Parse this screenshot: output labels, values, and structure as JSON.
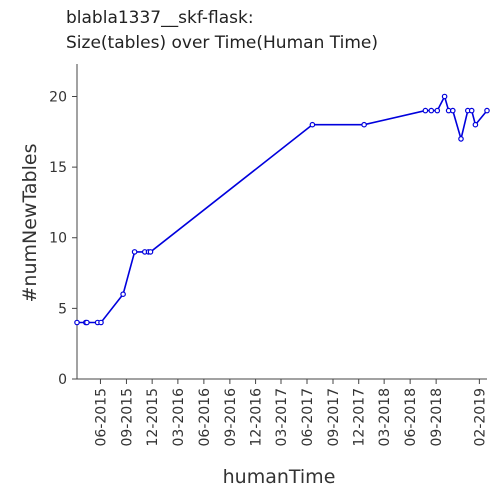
{
  "chart_data": {
    "type": "line",
    "title_lines": [
      "blabla1337__skf-flask:",
      "Size(tables) over Time(Human Time)"
    ],
    "xlabel": "humanTime",
    "ylabel": "#numNewTables",
    "x_ticks": [
      "06-2015",
      "09-2015",
      "12-2015",
      "03-2016",
      "06-2016",
      "09-2016",
      "12-2016",
      "03-2017",
      "06-2017",
      "09-2017",
      "12-2017",
      "03-2018",
      "06-2018",
      "09-2018",
      "02-2019"
    ],
    "y_ticks": [
      "0",
      "5",
      "10",
      "15",
      "20"
    ],
    "ylim": [
      0,
      22.3
    ],
    "xlim": [
      "2015-03-10",
      "2019-02-28"
    ],
    "grid": false,
    "color": "#0000dd",
    "series": [
      {
        "points": [
          {
            "x": "2015-03-10",
            "y": 4
          },
          {
            "x": "2015-04-10",
            "y": 4
          },
          {
            "x": "2015-04-14",
            "y": 4
          },
          {
            "x": "2015-05-22",
            "y": 4
          },
          {
            "x": "2015-06-03",
            "y": 4
          },
          {
            "x": "2015-08-20",
            "y": 6
          },
          {
            "x": "2015-09-30",
            "y": 9
          },
          {
            "x": "2015-11-05",
            "y": 9
          },
          {
            "x": "2015-11-18",
            "y": 9
          },
          {
            "x": "2015-11-25",
            "y": 9
          },
          {
            "x": "2017-06-20",
            "y": 18
          },
          {
            "x": "2017-12-20",
            "y": 18
          },
          {
            "x": "2018-07-25",
            "y": 19
          },
          {
            "x": "2018-08-15",
            "y": 19
          },
          {
            "x": "2018-09-05",
            "y": 19
          },
          {
            "x": "2018-10-01",
            "y": 20
          },
          {
            "x": "2018-10-15",
            "y": 19
          },
          {
            "x": "2018-10-30",
            "y": 19
          },
          {
            "x": "2018-11-28",
            "y": 17
          },
          {
            "x": "2018-12-22",
            "y": 19
          },
          {
            "x": "2019-01-05",
            "y": 19
          },
          {
            "x": "2019-01-18",
            "y": 18
          },
          {
            "x": "2019-02-28",
            "y": 19
          }
        ]
      }
    ]
  }
}
